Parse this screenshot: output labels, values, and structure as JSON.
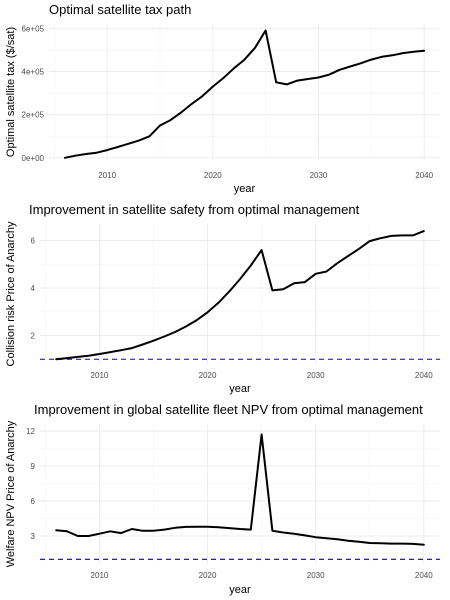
{
  "chart_data": [
    {
      "type": "line",
      "title": "Optimal satellite tax path",
      "xlabel": "year",
      "ylabel": "Optimal satellite tax ($/sat)",
      "xlim": [
        2004.5,
        2041.5
      ],
      "ylim": [
        -10000,
        620000
      ],
      "xticks": [
        2010,
        2020,
        2030,
        2040
      ],
      "yticks": [
        0,
        200000,
        400000,
        600000
      ],
      "ytick_labels": [
        "0e+00",
        "2e+05",
        "4e+05",
        "6e+05"
      ],
      "grid": true,
      "series": [
        {
          "color": "#000000",
          "x": [
            2006,
            2007,
            2008,
            2009,
            2010,
            2011,
            2012,
            2013,
            2014,
            2015,
            2016,
            2017,
            2018,
            2019,
            2020,
            2021,
            2022,
            2023,
            2024,
            2025,
            2026,
            2027,
            2028,
            2029,
            2030,
            2031,
            2032,
            2033,
            2034,
            2035,
            2036,
            2037,
            2038,
            2039,
            2040
          ],
          "y": [
            0,
            10000,
            18000,
            24000,
            36000,
            50000,
            65000,
            80000,
            100000,
            150000,
            175000,
            210000,
            250000,
            285000,
            330000,
            370000,
            415000,
            455000,
            510000,
            590000,
            350000,
            340000,
            358000,
            365000,
            372000,
            385000,
            408000,
            423000,
            438000,
            455000,
            468000,
            475000,
            485000,
            491000,
            496000
          ]
        }
      ]
    },
    {
      "type": "line",
      "title": "Improvement in satellite safety from optimal management",
      "xlabel": "year",
      "ylabel": "Collision risk Price of Anarchy",
      "xlim": [
        2004.5,
        2041.5
      ],
      "ylim": [
        0.8,
        6.7
      ],
      "xticks": [
        2010,
        2020,
        2030,
        2040
      ],
      "yticks": [
        2,
        4,
        6
      ],
      "grid": true,
      "reference_line": {
        "y": 1,
        "color": "#0000cc",
        "style": "dashed"
      },
      "series": [
        {
          "color": "#000000",
          "x": [
            2006,
            2007,
            2008,
            2009,
            2010,
            2011,
            2012,
            2013,
            2014,
            2015,
            2016,
            2017,
            2018,
            2019,
            2020,
            2021,
            2022,
            2023,
            2024,
            2025,
            2026,
            2027,
            2028,
            2029,
            2030,
            2031,
            2032,
            2033,
            2034,
            2035,
            2036,
            2037,
            2038,
            2039,
            2040
          ],
          "y": [
            1.0,
            1.05,
            1.1,
            1.15,
            1.22,
            1.3,
            1.38,
            1.47,
            1.62,
            1.78,
            1.96,
            2.15,
            2.38,
            2.65,
            2.98,
            3.38,
            3.85,
            4.38,
            4.95,
            5.6,
            3.9,
            3.95,
            4.2,
            4.25,
            4.6,
            4.7,
            5.05,
            5.35,
            5.65,
            5.98,
            6.1,
            6.2,
            6.22,
            6.22,
            6.4
          ]
        }
      ]
    },
    {
      "type": "line",
      "title": "Improvement in global satellite fleet NPV from optimal management",
      "xlabel": "year",
      "ylabel": "Welfare NPV Price of Anarchy",
      "xlim": [
        2004.5,
        2041.5
      ],
      "ylim": [
        0.6,
        12.6
      ],
      "xticks": [
        2010,
        2020,
        2030,
        2040
      ],
      "yticks": [
        3,
        6,
        9,
        12
      ],
      "grid": true,
      "reference_line": {
        "y": 1,
        "color": "#0000cc",
        "style": "dashed"
      },
      "series": [
        {
          "color": "#000000",
          "x": [
            2006,
            2007,
            2008,
            2009,
            2010,
            2011,
            2012,
            2013,
            2014,
            2015,
            2016,
            2017,
            2018,
            2019,
            2020,
            2021,
            2022,
            2023,
            2024,
            2025,
            2026,
            2027,
            2028,
            2029,
            2030,
            2031,
            2032,
            2033,
            2034,
            2035,
            2036,
            2037,
            2038,
            2039,
            2040
          ],
          "y": [
            3.5,
            3.4,
            3.0,
            3.0,
            3.2,
            3.4,
            3.25,
            3.6,
            3.45,
            3.45,
            3.55,
            3.7,
            3.78,
            3.8,
            3.8,
            3.75,
            3.68,
            3.6,
            3.55,
            11.7,
            3.45,
            3.3,
            3.2,
            3.05,
            2.9,
            2.8,
            2.72,
            2.6,
            2.5,
            2.4,
            2.38,
            2.35,
            2.35,
            2.32,
            2.25
          ]
        }
      ]
    }
  ]
}
